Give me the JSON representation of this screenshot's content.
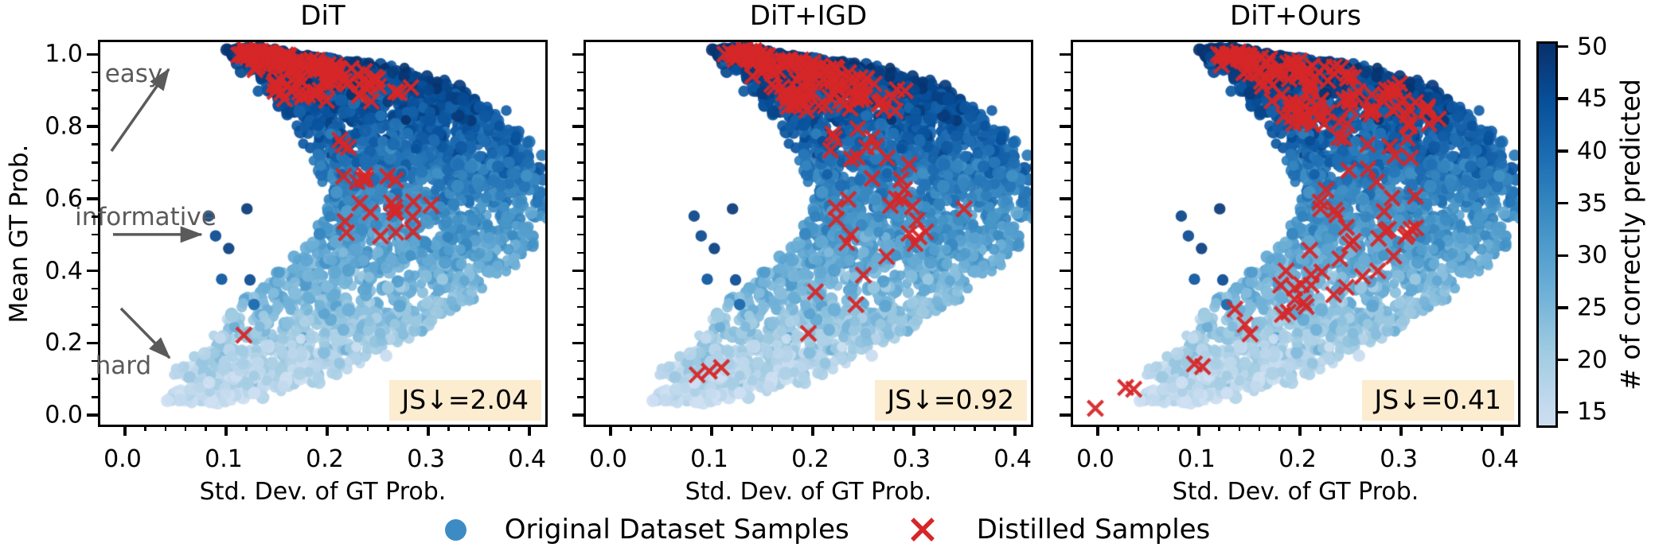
{
  "figure": {
    "background": "#ffffff"
  },
  "chart_data": {
    "type": "scatter",
    "panels": [
      {
        "title": "DiT",
        "js_label": "JS↓=2.04",
        "js_value": 2.04,
        "distilled": {
          "seed": 7,
          "top_count": 170,
          "top_spread_m": 0.13,
          "top_exp": 2.2,
          "top_xfrac": [
            0.05,
            0.75
          ],
          "mid_count": 18,
          "mid_m": [
            0.48,
            0.8
          ],
          "mid_xfrac": [
            0.1,
            0.45
          ],
          "extras": [
            [
              0.12,
              0.215
            ],
            [
              0.255,
              0.49
            ],
            [
              0.27,
              0.555
            ],
            [
              0.305,
              0.575
            ],
            [
              0.22,
              0.53
            ],
            [
              0.245,
              0.555
            ],
            [
              0.232,
              0.64
            ],
            [
              0.262,
              0.655
            ]
          ]
        },
        "annotations": [
          {
            "text": "easy",
            "x": 0.0087,
            "y": 0.945,
            "arrow_from": [
              -0.011,
              0.725
            ],
            "arrow_to": [
              0.0457,
              0.952
            ]
          },
          {
            "text": "informative",
            "x": 0.0205,
            "y": 0.549,
            "arrow_from": [
              -0.0094,
              0.494
            ],
            "arrow_to": [
              0.0779,
              0.494
            ]
          },
          {
            "text": "hard",
            "x": -0.0016,
            "y": 0.137,
            "arrow_from": [
              -0.0016,
              0.289
            ],
            "arrow_to": [
              0.0465,
              0.152
            ]
          }
        ]
      },
      {
        "title": "DiT+IGD",
        "js_label": "JS↓=0.92",
        "js_value": 0.92,
        "distilled": {
          "seed": 8,
          "top_count": 150,
          "top_spread_m": 0.16,
          "top_exp": 1.9,
          "top_xfrac": [
            0.08,
            0.78
          ],
          "mid_count": 30,
          "mid_m": [
            0.33,
            0.8
          ],
          "mid_xfrac": [
            0.1,
            0.55
          ],
          "extras": [
            [
              0.088,
              0.105
            ],
            [
              0.1,
              0.115
            ],
            [
              0.112,
              0.125
            ],
            [
              0.198,
              0.22
            ],
            [
              0.205,
              0.335
            ],
            [
              0.245,
              0.3
            ],
            [
              0.352,
              0.565
            ]
          ]
        },
        "annotations": []
      },
      {
        "title": "DiT+Ours",
        "js_label": "JS↓=0.41",
        "js_value": 0.41,
        "distilled": {
          "seed": 9,
          "top_count": 140,
          "top_spread_m": 0.2,
          "top_exp": 1.7,
          "top_xfrac": [
            0.1,
            0.85
          ],
          "mid_count": 42,
          "mid_m": [
            0.28,
            0.8
          ],
          "mid_xfrac": [
            0.1,
            0.6
          ],
          "extras": [
            [
              0.0,
              0.012
            ],
            [
              0.03,
              0.07
            ],
            [
              0.038,
              0.065
            ],
            [
              0.098,
              0.135
            ],
            [
              0.106,
              0.128
            ],
            [
              0.138,
              0.287
            ],
            [
              0.148,
              0.244
            ],
            [
              0.153,
              0.218
            ],
            [
              0.185,
              0.272
            ],
            [
              0.206,
              0.305
            ],
            [
              0.224,
              0.39
            ],
            [
              0.248,
              0.348
            ],
            [
              0.212,
              0.45
            ],
            [
              0.28,
              0.483
            ]
          ]
        },
        "annotations": []
      }
    ],
    "axes": {
      "xlabel": "Std. Dev. of GT Prob.",
      "ylabel": "Mean GT Prob.",
      "xtick_labels": [
        "0.0",
        "0.1",
        "0.2",
        "0.3",
        "0.4"
      ],
      "xtick_values": [
        0,
        0.1,
        0.2,
        0.3,
        0.4
      ],
      "ytick_labels": [
        "0.0",
        "0.2",
        "0.4",
        "0.6",
        "0.8",
        "1.0"
      ],
      "ytick_values": [
        0,
        0.2,
        0.4,
        0.6,
        0.8,
        1.0
      ],
      "xlim": [
        -0.022,
        0.418
      ],
      "ylim": [
        -0.033,
        1.027
      ],
      "x_minor_step": 0.02,
      "y_minor_step": 0.05
    },
    "colorbar": {
      "label": "# of correctly predicted",
      "ticks": [
        15,
        20,
        25,
        30,
        35,
        40,
        45,
        50
      ],
      "vmin": 13.5,
      "vmax": 50.5,
      "gradient_bottom_to_top": [
        {
          "pos": 0,
          "color": "#ccdef1"
        },
        {
          "pos": 4,
          "color": "#c6dbef"
        },
        {
          "pos": 20,
          "color": "#9ecae1"
        },
        {
          "pos": 36,
          "color": "#6baed6"
        },
        {
          "pos": 52,
          "color": "#4292c6"
        },
        {
          "pos": 68,
          "color": "#2171b5"
        },
        {
          "pos": 84,
          "color": "#08519c"
        },
        {
          "pos": 100,
          "color": "#08306b"
        }
      ]
    },
    "legend": {
      "items": [
        {
          "marker": "dot",
          "color": "#3d8bc4",
          "label": "Original Dataset Samples"
        },
        {
          "marker": "x",
          "color": "#d62728",
          "label": "Distilled Samples"
        }
      ]
    },
    "dataset_cloud": {
      "seed": 42,
      "n_points": 3200,
      "m_exp": 1.7,
      "m_span": 0.97,
      "left_edge": [
        [
          0.03,
          0.045
        ],
        [
          0.1,
          0.055
        ],
        [
          0.2,
          0.085
        ],
        [
          0.3,
          0.12
        ],
        [
          0.4,
          0.16
        ],
        [
          0.5,
          0.195
        ],
        [
          0.6,
          0.2
        ],
        [
          0.7,
          0.19
        ],
        [
          0.8,
          0.17
        ],
        [
          0.9,
          0.142
        ],
        [
          0.95,
          0.128
        ],
        [
          1.0,
          0.115
        ]
      ],
      "right_edge": [
        [
          0.03,
          0.1
        ],
        [
          0.1,
          0.21
        ],
        [
          0.2,
          0.28
        ],
        [
          0.3,
          0.33
        ],
        [
          0.45,
          0.4
        ],
        [
          0.55,
          0.42
        ],
        [
          0.7,
          0.41
        ],
        [
          0.8,
          0.385
        ],
        [
          0.9,
          0.33
        ],
        [
          0.95,
          0.27
        ],
        [
          0.98,
          0.2
        ],
        [
          1.0,
          0.135
        ]
      ],
      "color_rule": "count_correct = 13 + 37 * mean_gt_prob + noise, mapped on Blues colormap 13..50",
      "extra_dark_outliers": [
        [
          0.085,
          0.545,
          47
        ],
        [
          0.092,
          0.49,
          46
        ],
        [
          0.105,
          0.455,
          48
        ],
        [
          0.098,
          0.37,
          44
        ],
        [
          0.123,
          0.565,
          49
        ],
        [
          0.126,
          0.368,
          46
        ],
        [
          0.13,
          0.3,
          40
        ]
      ]
    },
    "colors": {
      "distilled_x": "#d62728",
      "badge_background": "#fcecd0",
      "annotation_gray": "#5a5a5a",
      "spine": "#000000"
    }
  }
}
